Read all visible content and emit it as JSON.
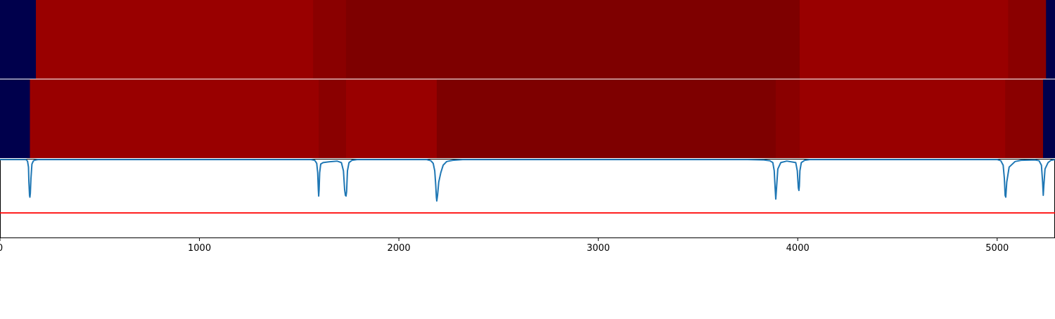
{
  "chart_data": {
    "type": "segmentation-timeline",
    "title": "",
    "xlabel": "",
    "ylabel": "",
    "xlim": [
      0,
      5290
    ],
    "xticks": [
      0,
      1000,
      2000,
      3000,
      4000,
      5000
    ],
    "xtick_labels": [
      "0",
      "1000",
      "2000",
      "3000",
      "4000",
      "5000"
    ],
    "rows": [
      {
        "name": "segmentation-row-1",
        "segments": [
          {
            "start": 0,
            "end": 180,
            "color": "#00004c"
          },
          {
            "start": 180,
            "end": 1570,
            "color": "#990000"
          },
          {
            "start": 1570,
            "end": 1735,
            "color": "#8a0000"
          },
          {
            "start": 1735,
            "end": 4010,
            "color": "#7e0000"
          },
          {
            "start": 4010,
            "end": 5055,
            "color": "#990000"
          },
          {
            "start": 5055,
            "end": 5245,
            "color": "#8a0000"
          },
          {
            "start": 5245,
            "end": 5290,
            "color": "#00004c"
          }
        ]
      },
      {
        "name": "segmentation-row-2",
        "segments": [
          {
            "start": 0,
            "end": 150,
            "color": "#00004c"
          },
          {
            "start": 150,
            "end": 1598,
            "color": "#990000"
          },
          {
            "start": 1598,
            "end": 1735,
            "color": "#8a0000"
          },
          {
            "start": 1735,
            "end": 2190,
            "color": "#990000"
          },
          {
            "start": 2190,
            "end": 3890,
            "color": "#7e0000"
          },
          {
            "start": 3890,
            "end": 4010,
            "color": "#8a0000"
          },
          {
            "start": 4010,
            "end": 5040,
            "color": "#990000"
          },
          {
            "start": 5040,
            "end": 5230,
            "color": "#8a0000"
          },
          {
            "start": 5230,
            "end": 5290,
            "color": "#00004c"
          }
        ]
      }
    ],
    "score_series": {
      "name": "boundary-score",
      "color": "#1f77b4",
      "ylim": [
        -1.1,
        0.02
      ],
      "x": [
        0,
        130,
        138,
        143,
        145,
        148,
        150,
        152,
        155,
        160,
        168,
        180,
        190,
        1560,
        1578,
        1588,
        1593,
        1596,
        1598,
        1600,
        1603,
        1608,
        1620,
        1650,
        1690,
        1712,
        1722,
        1728,
        1732,
        1735,
        1738,
        1742,
        1750,
        1765,
        1790,
        2140,
        2160,
        2172,
        2180,
        2185,
        2188,
        2190,
        2194,
        2200,
        2210,
        2222,
        2240,
        2270,
        2320,
        3750,
        3830,
        3860,
        3875,
        3882,
        3887,
        3890,
        3893,
        3900,
        3915,
        3945,
        3990,
        3998,
        4003,
        4006,
        4008,
        4011,
        4018,
        4035,
        4060,
        5000,
        5018,
        5030,
        5036,
        5040,
        5043,
        5048,
        5060,
        5090,
        5120,
        5190,
        5210,
        5222,
        5228,
        5231,
        5234,
        5240,
        5255,
        5270,
        5290
      ],
      "y": [
        0,
        0,
        -0.04,
        -0.2,
        -0.6,
        -0.95,
        -1.0,
        -0.9,
        -0.5,
        -0.12,
        -0.03,
        -0.01,
        0,
        0,
        -0.02,
        -0.1,
        -0.35,
        -0.8,
        -0.97,
        -0.8,
        -0.35,
        -0.12,
        -0.08,
        -0.06,
        -0.04,
        -0.08,
        -0.3,
        -0.8,
        -0.95,
        -0.97,
        -0.85,
        -0.3,
        -0.08,
        -0.02,
        0,
        0,
        -0.03,
        -0.1,
        -0.3,
        -0.7,
        -1.0,
        -1.1,
        -0.95,
        -0.6,
        -0.35,
        -0.15,
        -0.05,
        -0.02,
        0,
        0,
        -0.01,
        -0.03,
        -0.08,
        -0.3,
        -0.8,
        -1.05,
        -0.8,
        -0.25,
        -0.08,
        -0.04,
        -0.08,
        -0.3,
        -0.75,
        -0.82,
        -0.7,
        -0.3,
        -0.08,
        -0.02,
        0,
        0,
        -0.03,
        -0.15,
        -0.5,
        -0.95,
        -1.0,
        -0.6,
        -0.2,
        -0.05,
        -0.02,
        -0.01,
        -0.03,
        -0.15,
        -0.6,
        -0.95,
        -0.7,
        -0.25,
        -0.08,
        -0.02,
        0
      ]
    },
    "threshold": {
      "name": "threshold-line",
      "value": -1.4,
      "color": "#ff0000"
    }
  }
}
